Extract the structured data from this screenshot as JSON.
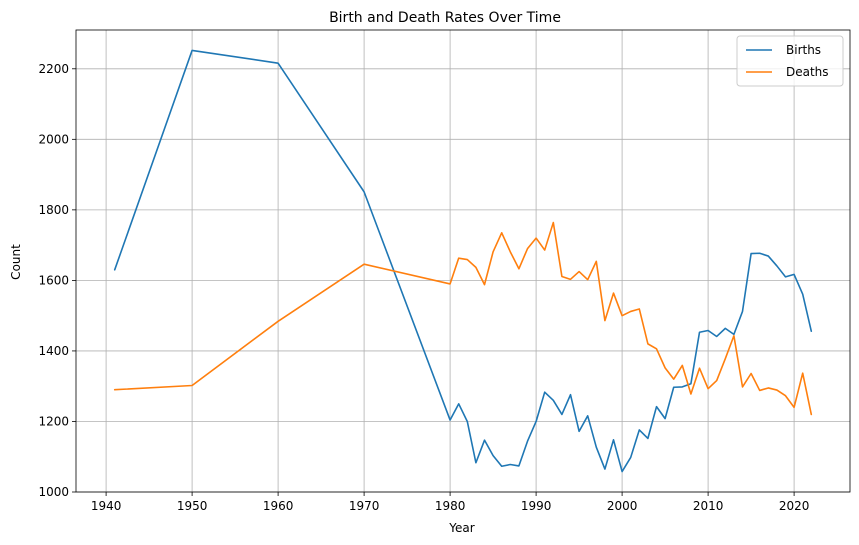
{
  "chart_data": {
    "type": "line",
    "title": "Birth and Death Rates Over Time",
    "xlabel": "Year",
    "ylabel": "Count",
    "xlim": [
      1936.5,
      2026.5
    ],
    "ylim": [
      1000,
      2310
    ],
    "xticks": [
      1940,
      1950,
      1960,
      1970,
      1980,
      1990,
      2000,
      2010,
      2020
    ],
    "yticks": [
      1000,
      1200,
      1400,
      1600,
      1800,
      2000,
      2200
    ],
    "grid": true,
    "legend_position": "top-right",
    "series": [
      {
        "name": "Births",
        "color": "#1f77b4",
        "x": [
          1941,
          1950,
          1960,
          1970,
          1980,
          1981,
          1982,
          1983,
          1984,
          1985,
          1986,
          1987,
          1988,
          1989,
          1990,
          1991,
          1992,
          1993,
          1994,
          1995,
          1996,
          1997,
          1998,
          1999,
          2000,
          2001,
          2002,
          2003,
          2004,
          2005,
          2006,
          2007,
          2008,
          2009,
          2010,
          2011,
          2012,
          2013,
          2014,
          2015,
          2016,
          2017,
          2018,
          2019,
          2020,
          2021,
          2022
        ],
        "y": [
          1630,
          2252,
          2216,
          1851,
          1204,
          1250,
          1200,
          1083,
          1147,
          1103,
          1073,
          1078,
          1074,
          1144,
          1200,
          1283,
          1260,
          1220,
          1276,
          1172,
          1216,
          1127,
          1065,
          1148,
          1058,
          1098,
          1176,
          1152,
          1242,
          1208,
          1297,
          1298,
          1307,
          1453,
          1458,
          1441,
          1464,
          1447,
          1512,
          1676,
          1677,
          1669,
          1641,
          1610,
          1617,
          1561,
          1456
        ]
      },
      {
        "name": "Deaths",
        "color": "#ff7f0e",
        "x": [
          1941,
          1950,
          1960,
          1970,
          1980,
          1981,
          1982,
          1983,
          1984,
          1985,
          1986,
          1987,
          1988,
          1989,
          1990,
          1991,
          1992,
          1993,
          1994,
          1995,
          1996,
          1997,
          1998,
          1999,
          2000,
          2001,
          2002,
          2003,
          2004,
          2005,
          2006,
          2007,
          2008,
          2009,
          2010,
          2011,
          2012,
          2013,
          2014,
          2015,
          2016,
          2017,
          2018,
          2019,
          2020,
          2021,
          2022
        ],
        "y": [
          1290,
          1302,
          1484,
          1646,
          1590,
          1663,
          1659,
          1637,
          1588,
          1681,
          1735,
          1681,
          1633,
          1690,
          1720,
          1686,
          1764,
          1611,
          1603,
          1625,
          1602,
          1654,
          1486,
          1564,
          1500,
          1512,
          1519,
          1420,
          1406,
          1352,
          1320,
          1359,
          1278,
          1351,
          1293,
          1316,
          1378,
          1443,
          1298,
          1336,
          1288,
          1295,
          1289,
          1273,
          1240,
          1337,
          1220
        ]
      }
    ]
  }
}
